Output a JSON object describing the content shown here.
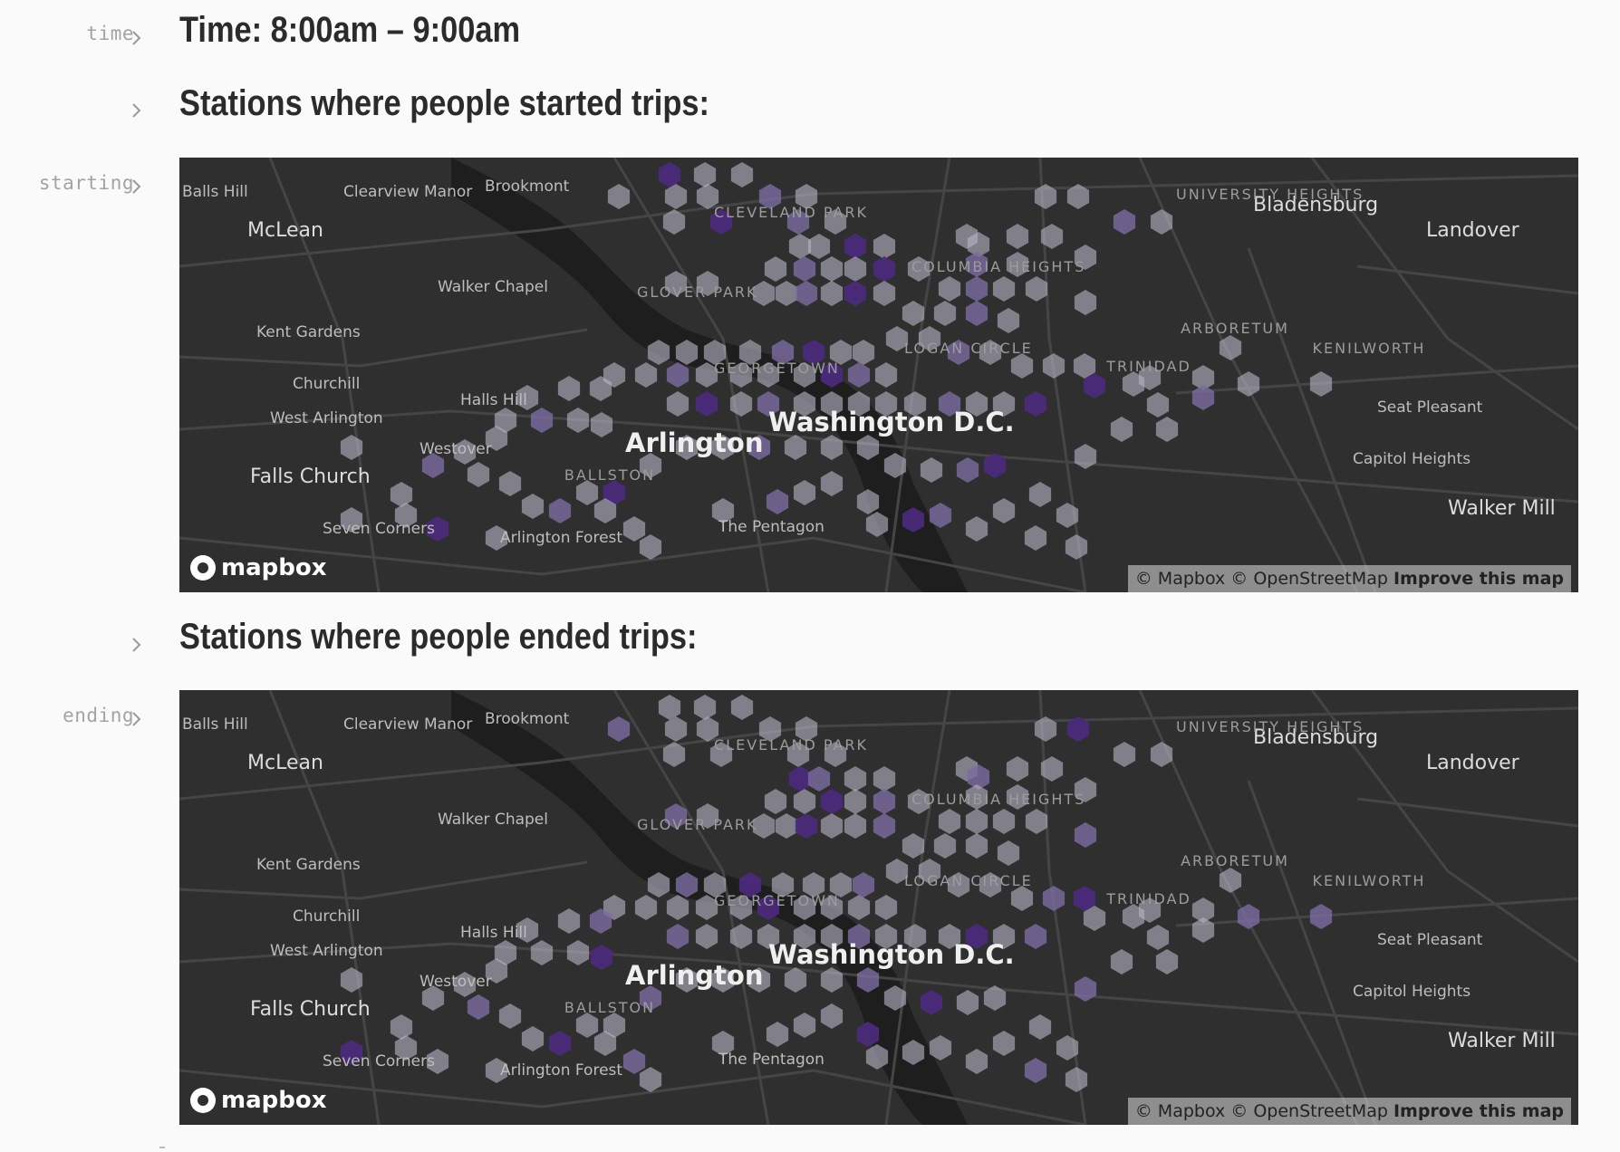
{
  "cells": {
    "time": {
      "name": "time",
      "heading": "Time: 8:00am – 9:00am"
    },
    "started_heading": "Stations where people started trips:",
    "starting": {
      "name": "starting"
    },
    "ended_heading": "Stations where people ended trips:",
    "ending": {
      "name": "ending"
    }
  },
  "map": {
    "labels_large": [
      "Washington D.C.",
      "Arlington"
    ],
    "labels_medium": [
      "McLean",
      "Falls Church",
      "Bladensburg",
      "Landover",
      "Walker Mill"
    ],
    "labels_small": [
      "Balls Hill",
      "Clearview Manor",
      "Brookmont",
      "Walker Chapel",
      "Kent Gardens",
      "Churchill",
      "West Arlington",
      "Halls Hill",
      "Westover",
      "Seven Corners",
      "Arlington Forest",
      "The Pentagon",
      "Seat Pleasant",
      "Capitol Heights"
    ],
    "neighborhoods": [
      "CLEVELAND PARK",
      "UNIVERSITY HEIGHTS",
      "GLOVER PARK",
      "COLUMBIA HEIGHTS",
      "LOGAN CIRCLE",
      "GEORGETOWN",
      "ARBORETUM",
      "KENILWORTH",
      "TRINIDAD",
      "BALLSTON"
    ],
    "logo": "mapbox",
    "attribution_text": "© Mapbox © OpenStreetMap",
    "attribution_link": "Improve this map",
    "colors": {
      "background": "#2f2f2f",
      "hex_low": "#b9b6c6",
      "hex_high": "#4a2a7a"
    }
  }
}
